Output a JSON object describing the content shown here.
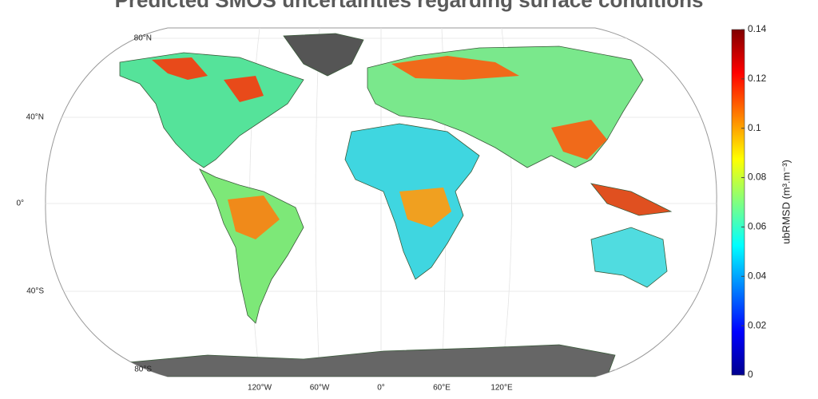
{
  "title": "Predicted SMOS uncertainties regarding surface conditions",
  "map": {
    "lat_labels": [
      "80°N",
      "40°N",
      "0°",
      "40°S",
      "80°S"
    ],
    "lon_labels": [
      "120°W",
      "60°W",
      "0°",
      "60°E",
      "120°E"
    ]
  },
  "colorbar": {
    "label": "ubRMSD (m³.m⁻³)",
    "lim": [
      0,
      0.14
    ],
    "ticks": [
      0,
      0.02,
      0.04,
      0.06,
      0.08,
      0.1,
      0.12,
      0.14
    ],
    "colors": [
      "#00008f",
      "#0000ff",
      "#0080ff",
      "#00ffff",
      "#80ff80",
      "#ffff00",
      "#ff8000",
      "#ff0000",
      "#800000"
    ]
  }
}
